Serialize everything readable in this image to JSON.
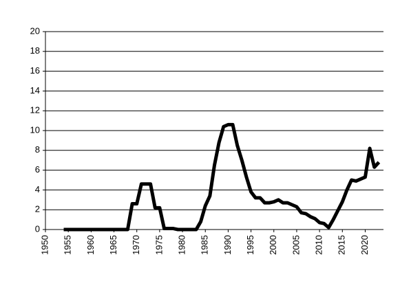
{
  "chart_data": {
    "type": "line",
    "x": [
      1954,
      1955,
      1956,
      1957,
      1958,
      1959,
      1960,
      1961,
      1962,
      1963,
      1964,
      1965,
      1966,
      1967,
      1968,
      1969,
      1970,
      1971,
      1972,
      1973,
      1974,
      1975,
      1976,
      1977,
      1978,
      1979,
      1980,
      1981,
      1982,
      1983,
      1984,
      1985,
      1986,
      1987,
      1988,
      1989,
      1990,
      1991,
      1992,
      1993,
      1994,
      1995,
      1996,
      1997,
      1998,
      1999,
      2000,
      2001,
      2002,
      2003,
      2004,
      2005,
      2006,
      2007,
      2008,
      2009,
      2010,
      2011,
      2012,
      2013,
      2014,
      2015,
      2016,
      2017,
      2018,
      2019,
      2020,
      2021,
      2022,
      2023
    ],
    "series": [
      {
        "color": "#000000",
        "values": [
          0,
          0,
          0,
          0,
          0,
          0,
          0,
          0,
          0,
          0,
          0,
          0,
          0,
          0,
          0,
          2.6,
          2.6,
          4.6,
          4.6,
          4.6,
          2.2,
          2.2,
          0.1,
          0.1,
          0.1,
          0,
          0,
          0,
          0,
          0,
          0.8,
          2.4,
          3.4,
          6.5,
          8.8,
          10.4,
          10.6,
          10.6,
          8.5,
          7.0,
          5.3,
          3.8,
          3.2,
          3.2,
          2.7,
          2.7,
          2.8,
          3.0,
          2.7,
          2.7,
          2.5,
          2.3,
          1.7,
          1.6,
          1.3,
          1.1,
          0.7,
          0.6,
          0.2,
          1.0,
          1.9,
          2.8,
          4.0,
          5.0,
          4.9,
          5.1,
          5.3,
          8.2,
          6.3,
          6.8
        ]
      }
    ],
    "xlim": [
      1950,
      2024
    ],
    "xticks": [
      1950,
      1955,
      1960,
      1965,
      1970,
      1975,
      1980,
      1985,
      1990,
      1995,
      2000,
      2005,
      2010,
      2015,
      2020
    ],
    "ylim": [
      0,
      20
    ],
    "yticks": [
      0,
      2,
      4,
      6,
      8,
      10,
      12,
      14,
      16,
      18,
      20
    ],
    "grid": true
  }
}
